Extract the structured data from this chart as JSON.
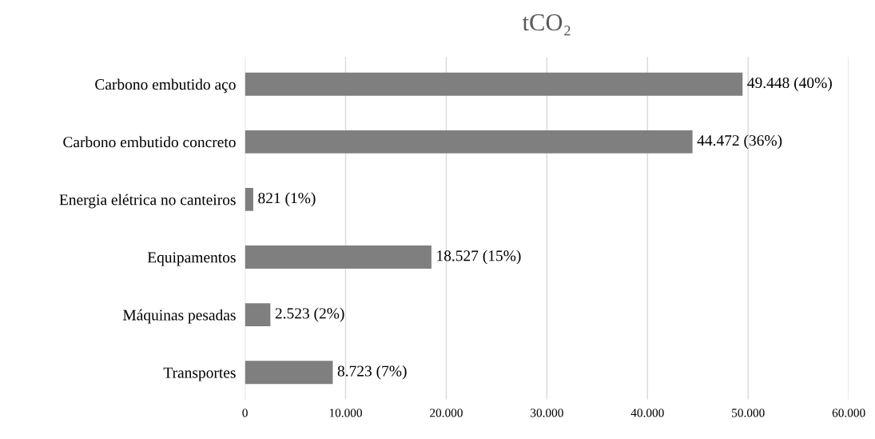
{
  "chart_data": {
    "type": "bar",
    "orientation": "horizontal",
    "title": "tCO₂",
    "categories": [
      "Carbono embutido aço",
      "Carbono embutido concreto",
      "Energia elétrica no canteiros",
      "Equipamentos",
      "Máquinas pesadas",
      "Transportes"
    ],
    "values": [
      49448,
      44472,
      821,
      18527,
      2523,
      8723
    ],
    "value_labels": [
      "49.448 (40%)",
      "44.472 (36%)",
      "821 (1%)",
      "18.527 (15%)",
      "2.523 (2%)",
      "8.723 (7%)"
    ],
    "color": "#7f7f7f",
    "xlim": [
      0,
      60000
    ],
    "xticks": [
      {
        "value": 0,
        "label": "0"
      },
      {
        "value": 10000,
        "label": "10.000"
      },
      {
        "value": 20000,
        "label": "20.000"
      },
      {
        "value": 30000,
        "label": "30.000"
      },
      {
        "value": 40000,
        "label": "40.000"
      },
      {
        "value": 50000,
        "label": "50.000"
      },
      {
        "value": 60000,
        "label": "60.000"
      }
    ],
    "grid": "x"
  }
}
